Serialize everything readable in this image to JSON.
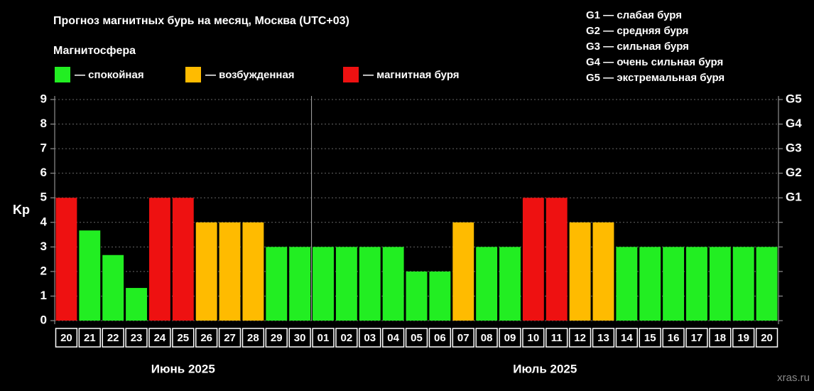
{
  "chart_data": {
    "type": "bar",
    "title": "Прогноз магнитных бурь на месяц, Москва (UTC+03)",
    "subtitle": "Магнитосфера",
    "legend": [
      {
        "name": "— спокойная",
        "color": "#22ee22"
      },
      {
        "name": "— возбужденная",
        "color": "#ffbb00"
      },
      {
        "name": "— магнитная буря",
        "color": "#ee1111"
      }
    ],
    "storm_legend": [
      "G1 — слабая буря",
      "G2 — средняя буря",
      "G3 — сильная буря",
      "G4 — очень сильная буря",
      "G5 — экстремальная буря"
    ],
    "ylabel": "Kp",
    "categories": [
      "20",
      "21",
      "22",
      "23",
      "24",
      "25",
      "26",
      "27",
      "28",
      "29",
      "30",
      "01",
      "02",
      "03",
      "04",
      "05",
      "06",
      "07",
      "08",
      "09",
      "10",
      "11",
      "12",
      "13",
      "14",
      "15",
      "16",
      "17",
      "18",
      "19",
      "20"
    ],
    "values": [
      5,
      3.67,
      2.67,
      1.33,
      5,
      5,
      4,
      4,
      4,
      3,
      3,
      3,
      3,
      3,
      3,
      2,
      2,
      4,
      3,
      3,
      5,
      5,
      4,
      4,
      3,
      3,
      3,
      3,
      3,
      3,
      3
    ],
    "colors": [
      "#ee1111",
      "#22ee22",
      "#22ee22",
      "#22ee22",
      "#ee1111",
      "#ee1111",
      "#ffbb00",
      "#ffbb00",
      "#ffbb00",
      "#22ee22",
      "#22ee22",
      "#22ee22",
      "#22ee22",
      "#22ee22",
      "#22ee22",
      "#22ee22",
      "#22ee22",
      "#ffbb00",
      "#22ee22",
      "#22ee22",
      "#ee1111",
      "#ee1111",
      "#ffbb00",
      "#ffbb00",
      "#22ee22",
      "#22ee22",
      "#22ee22",
      "#22ee22",
      "#22ee22",
      "#22ee22",
      "#22ee22"
    ],
    "month_labels": [
      "Июнь 2025",
      "Июль 2025"
    ],
    "ylim": [
      0,
      9
    ],
    "yticks": [
      0,
      1,
      2,
      3,
      4,
      5,
      6,
      7,
      8,
      9
    ],
    "y2lim": [
      0,
      9
    ],
    "y2ticks": [
      {
        "value": 5,
        "label": "G1"
      },
      {
        "value": 6,
        "label": "G2"
      },
      {
        "value": 7,
        "label": "G3"
      },
      {
        "value": 8,
        "label": "G4"
      },
      {
        "value": 9,
        "label": "G5"
      }
    ],
    "grid": true,
    "watermark": "xras.ru"
  }
}
